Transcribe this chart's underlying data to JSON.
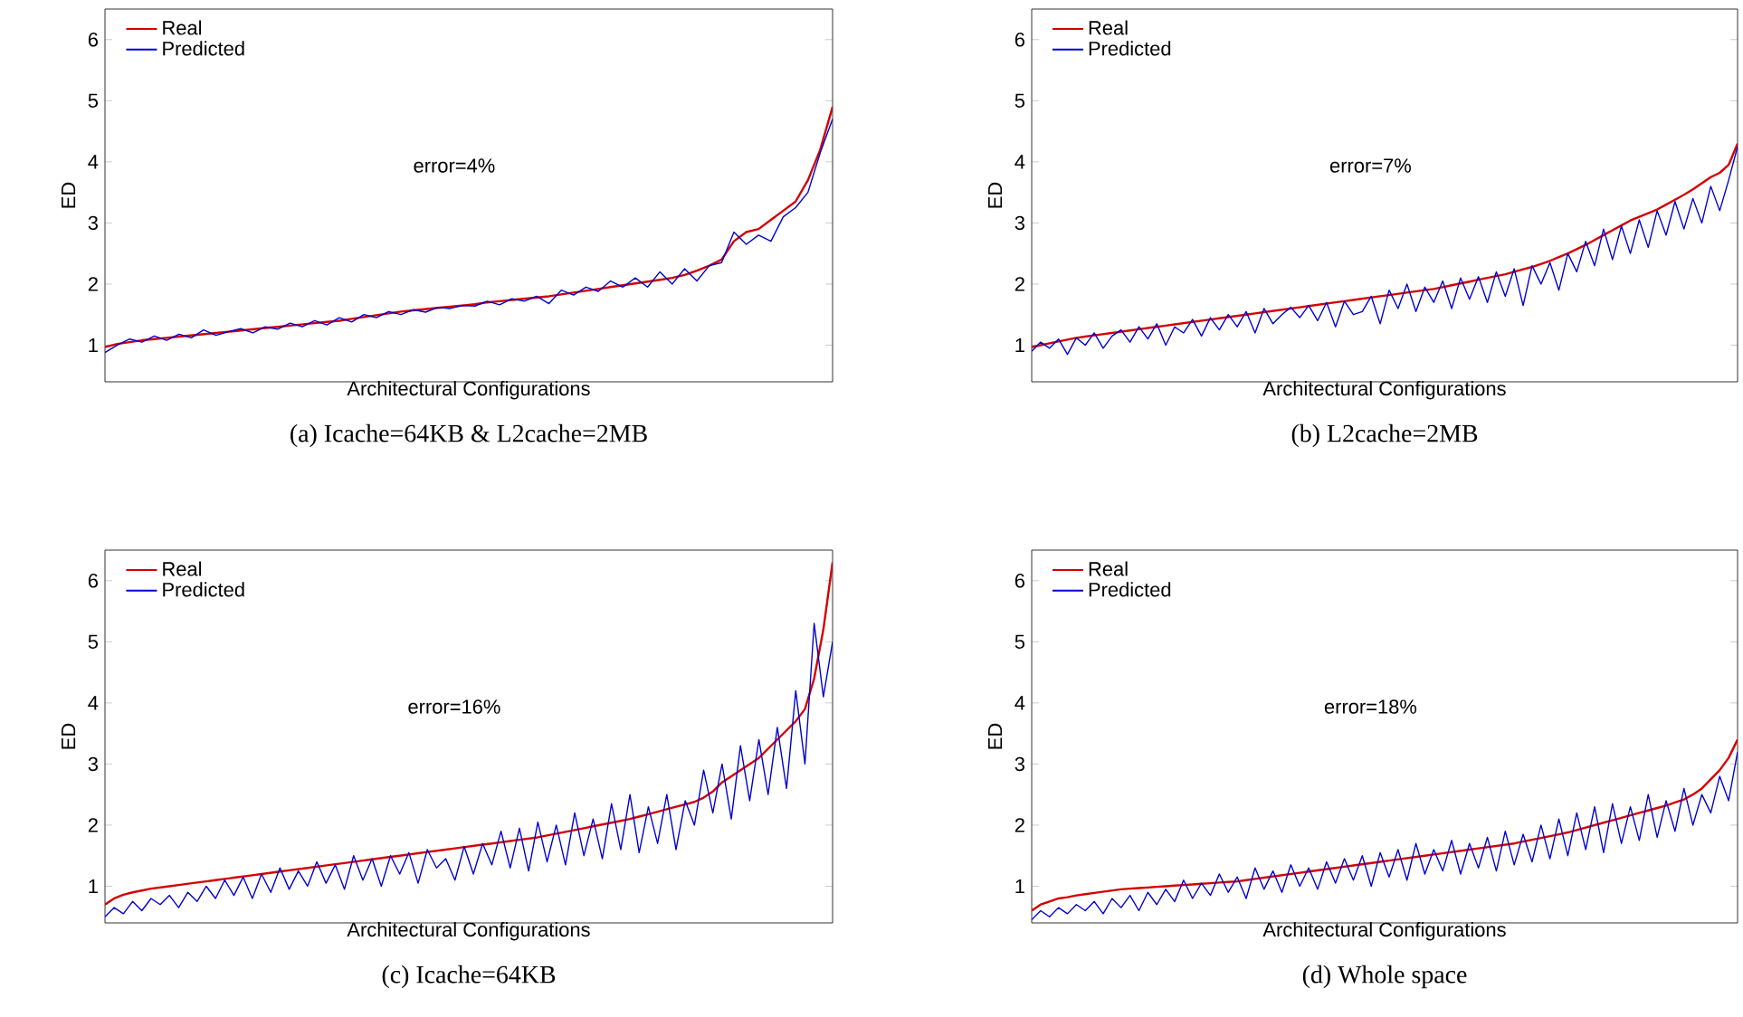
{
  "chart_data": [
    {
      "type": "line",
      "title": "(a)  Icache=64KB  &  L2cache=2MB",
      "xlabel": "Architectural Configurations",
      "ylabel": "ED",
      "annotations": [
        "error=4%"
      ],
      "ylim": [
        0.4,
        6.5
      ],
      "yticks": [
        1,
        2,
        3,
        4,
        5,
        6
      ],
      "legend": "top left",
      "grid": false,
      "tick_labels": "y",
      "categories": [
        null,
        null,
        null,
        null,
        null,
        null,
        null,
        null,
        null,
        null,
        null,
        null,
        null,
        null,
        null,
        null,
        null,
        null,
        null,
        null,
        null,
        null,
        null,
        null,
        null,
        null,
        null,
        null,
        null,
        null,
        null,
        null,
        null,
        null,
        null,
        null,
        null,
        null,
        null,
        null,
        null,
        null,
        null,
        null,
        null,
        null,
        null,
        null,
        null,
        null,
        null,
        null,
        null,
        null,
        null,
        null,
        null,
        null,
        null,
        null
      ],
      "series": [
        {
          "name": "Real",
          "color": "#d40000",
          "values": [
            0.97,
            1.02,
            1.05,
            1.08,
            1.1,
            1.12,
            1.14,
            1.16,
            1.18,
            1.2,
            1.22,
            1.24,
            1.26,
            1.28,
            1.3,
            1.32,
            1.34,
            1.36,
            1.38,
            1.4,
            1.43,
            1.46,
            1.49,
            1.52,
            1.55,
            1.57,
            1.59,
            1.61,
            1.63,
            1.65,
            1.67,
            1.7,
            1.72,
            1.74,
            1.76,
            1.78,
            1.8,
            1.83,
            1.86,
            1.89,
            1.92,
            1.95,
            1.98,
            2.01,
            2.04,
            2.07,
            2.1,
            2.15,
            2.22,
            2.3,
            2.4,
            2.7,
            2.85,
            2.9,
            3.05,
            3.2,
            3.35,
            3.7,
            4.2,
            4.9
          ]
        },
        {
          "name": "Predicted",
          "color": "#0000d0",
          "values": [
            0.88,
            1.0,
            1.1,
            1.05,
            1.15,
            1.08,
            1.18,
            1.12,
            1.25,
            1.16,
            1.22,
            1.27,
            1.2,
            1.3,
            1.26,
            1.36,
            1.3,
            1.4,
            1.33,
            1.45,
            1.38,
            1.5,
            1.45,
            1.55,
            1.5,
            1.58,
            1.54,
            1.62,
            1.6,
            1.65,
            1.64,
            1.72,
            1.66,
            1.76,
            1.72,
            1.8,
            1.68,
            1.9,
            1.82,
            1.95,
            1.88,
            2.05,
            1.95,
            2.1,
            1.95,
            2.2,
            2.0,
            2.25,
            2.05,
            2.3,
            2.35,
            2.85,
            2.65,
            2.8,
            2.7,
            3.1,
            3.25,
            3.5,
            4.15,
            4.7
          ]
        }
      ]
    },
    {
      "type": "line",
      "title": "(b)  L2cache=2MB",
      "xlabel": "Architectural Configurations",
      "ylabel": "ED",
      "annotations": [
        "error=7%"
      ],
      "ylim": [
        0.4,
        6.5
      ],
      "yticks": [
        1,
        2,
        3,
        4,
        5,
        6
      ],
      "legend": "top left",
      "grid": false,
      "tick_labels": "y",
      "categories": [
        null,
        null,
        null,
        null,
        null,
        null,
        null,
        null,
        null,
        null,
        null,
        null,
        null,
        null,
        null,
        null,
        null,
        null,
        null,
        null,
        null,
        null,
        null,
        null,
        null,
        null,
        null,
        null,
        null,
        null,
        null,
        null,
        null,
        null,
        null,
        null,
        null,
        null,
        null,
        null,
        null,
        null,
        null,
        null,
        null,
        null,
        null,
        null,
        null,
        null,
        null,
        null,
        null,
        null,
        null,
        null,
        null,
        null,
        null,
        null,
        null,
        null,
        null,
        null,
        null,
        null,
        null,
        null,
        null,
        null,
        null,
        null,
        null,
        null,
        null,
        null,
        null,
        null,
        null,
        null
      ],
      "series": [
        {
          "name": "Real",
          "color": "#d40000",
          "values": [
            0.97,
            1.0,
            1.03,
            1.06,
            1.09,
            1.12,
            1.14,
            1.16,
            1.18,
            1.2,
            1.22,
            1.24,
            1.26,
            1.28,
            1.3,
            1.32,
            1.34,
            1.36,
            1.38,
            1.4,
            1.42,
            1.44,
            1.46,
            1.48,
            1.5,
            1.52,
            1.54,
            1.56,
            1.58,
            1.6,
            1.62,
            1.64,
            1.66,
            1.68,
            1.7,
            1.72,
            1.74,
            1.76,
            1.78,
            1.8,
            1.82,
            1.84,
            1.86,
            1.88,
            1.9,
            1.92,
            1.95,
            1.98,
            2.01,
            2.04,
            2.07,
            2.1,
            2.13,
            2.16,
            2.2,
            2.24,
            2.28,
            2.33,
            2.38,
            2.44,
            2.5,
            2.57,
            2.64,
            2.72,
            2.8,
            2.88,
            2.96,
            3.04,
            3.1,
            3.16,
            3.22,
            3.3,
            3.38,
            3.46,
            3.55,
            3.65,
            3.75,
            3.82,
            3.95,
            4.3
          ]
        },
        {
          "name": "Predicted",
          "color": "#0000d0",
          "values": [
            0.9,
            1.05,
            0.95,
            1.1,
            0.85,
            1.12,
            1.0,
            1.2,
            0.95,
            1.15,
            1.25,
            1.05,
            1.3,
            1.1,
            1.35,
            1.0,
            1.3,
            1.2,
            1.42,
            1.15,
            1.45,
            1.25,
            1.5,
            1.3,
            1.55,
            1.2,
            1.6,
            1.35,
            1.5,
            1.62,
            1.45,
            1.65,
            1.4,
            1.7,
            1.3,
            1.72,
            1.5,
            1.55,
            1.8,
            1.35,
            1.9,
            1.6,
            2.0,
            1.55,
            1.95,
            1.7,
            2.05,
            1.6,
            2.1,
            1.75,
            2.12,
            1.7,
            2.2,
            1.8,
            2.25,
            1.65,
            2.3,
            2.0,
            2.35,
            1.9,
            2.5,
            2.2,
            2.7,
            2.3,
            2.9,
            2.4,
            2.95,
            2.5,
            3.05,
            2.6,
            3.2,
            2.8,
            3.35,
            2.9,
            3.4,
            3.0,
            3.6,
            3.2,
            3.7,
            4.25
          ]
        }
      ]
    },
    {
      "type": "line",
      "title": "(c)  Icache=64KB",
      "xlabel": "Architectural Configurations",
      "ylabel": "ED",
      "annotations": [
        "error=16%"
      ],
      "ylim": [
        0.4,
        6.5
      ],
      "yticks": [
        1,
        2,
        3,
        4,
        5,
        6
      ],
      "legend": "top left",
      "grid": false,
      "tick_labels": "y",
      "categories": [
        null,
        null,
        null,
        null,
        null,
        null,
        null,
        null,
        null,
        null,
        null,
        null,
        null,
        null,
        null,
        null,
        null,
        null,
        null,
        null,
        null,
        null,
        null,
        null,
        null,
        null,
        null,
        null,
        null,
        null,
        null,
        null,
        null,
        null,
        null,
        null,
        null,
        null,
        null,
        null,
        null,
        null,
        null,
        null,
        null,
        null,
        null,
        null,
        null,
        null,
        null,
        null,
        null,
        null,
        null,
        null,
        null,
        null,
        null,
        null,
        null,
        null,
        null,
        null,
        null,
        null,
        null,
        null,
        null,
        null,
        null,
        null,
        null,
        null,
        null,
        null,
        null,
        null,
        null,
        null
      ],
      "series": [
        {
          "name": "Real",
          "color": "#d40000",
          "values": [
            0.7,
            0.8,
            0.86,
            0.9,
            0.93,
            0.96,
            0.98,
            1.0,
            1.02,
            1.04,
            1.06,
            1.08,
            1.1,
            1.12,
            1.14,
            1.16,
            1.18,
            1.2,
            1.22,
            1.24,
            1.26,
            1.28,
            1.3,
            1.32,
            1.34,
            1.36,
            1.38,
            1.4,
            1.42,
            1.44,
            1.46,
            1.48,
            1.5,
            1.52,
            1.54,
            1.56,
            1.58,
            1.6,
            1.62,
            1.64,
            1.66,
            1.68,
            1.7,
            1.72,
            1.74,
            1.76,
            1.78,
            1.8,
            1.83,
            1.86,
            1.89,
            1.92,
            1.95,
            1.98,
            2.01,
            2.04,
            2.07,
            2.1,
            2.14,
            2.18,
            2.22,
            2.26,
            2.3,
            2.34,
            2.38,
            2.45,
            2.55,
            2.7,
            2.8,
            2.9,
            3.0,
            3.1,
            3.25,
            3.4,
            3.55,
            3.7,
            3.9,
            4.4,
            5.2,
            6.3
          ]
        },
        {
          "name": "Predicted",
          "color": "#0000d0",
          "values": [
            0.5,
            0.65,
            0.55,
            0.75,
            0.6,
            0.8,
            0.7,
            0.85,
            0.65,
            0.9,
            0.75,
            1.0,
            0.8,
            1.1,
            0.85,
            1.15,
            0.8,
            1.2,
            0.9,
            1.3,
            0.95,
            1.25,
            1.0,
            1.4,
            1.05,
            1.35,
            0.95,
            1.5,
            1.1,
            1.45,
            1.0,
            1.5,
            1.2,
            1.55,
            1.05,
            1.6,
            1.3,
            1.45,
            1.1,
            1.65,
            1.2,
            1.7,
            1.35,
            1.9,
            1.3,
            1.95,
            1.25,
            2.05,
            1.4,
            2.0,
            1.35,
            2.2,
            1.5,
            2.1,
            1.45,
            2.35,
            1.6,
            2.5,
            1.55,
            2.3,
            1.7,
            2.5,
            1.6,
            2.4,
            2.0,
            2.9,
            2.2,
            3.0,
            2.1,
            3.3,
            2.4,
            3.4,
            2.5,
            3.6,
            2.6,
            4.2,
            3.0,
            5.3,
            4.1,
            5.0
          ]
        }
      ]
    },
    {
      "type": "line",
      "title": "(d)  Whole space",
      "xlabel": "Architectural Configurations",
      "ylabel": "ED",
      "annotations": [
        "error=18%"
      ],
      "ylim": [
        0.4,
        6.5
      ],
      "yticks": [
        1,
        2,
        3,
        4,
        5,
        6
      ],
      "legend": "top left",
      "grid": false,
      "tick_labels": "y",
      "categories": [
        null,
        null,
        null,
        null,
        null,
        null,
        null,
        null,
        null,
        null,
        null,
        null,
        null,
        null,
        null,
        null,
        null,
        null,
        null,
        null,
        null,
        null,
        null,
        null,
        null,
        null,
        null,
        null,
        null,
        null,
        null,
        null,
        null,
        null,
        null,
        null,
        null,
        null,
        null,
        null,
        null,
        null,
        null,
        null,
        null,
        null,
        null,
        null,
        null,
        null,
        null,
        null,
        null,
        null,
        null,
        null,
        null,
        null,
        null,
        null,
        null,
        null,
        null,
        null,
        null,
        null,
        null,
        null,
        null,
        null,
        null,
        null,
        null,
        null,
        null,
        null,
        null,
        null,
        null,
        null
      ],
      "series": [
        {
          "name": "Real",
          "color": "#d40000",
          "values": [
            0.6,
            0.7,
            0.75,
            0.8,
            0.82,
            0.85,
            0.87,
            0.89,
            0.91,
            0.93,
            0.95,
            0.96,
            0.97,
            0.98,
            0.99,
            1.0,
            1.01,
            1.02,
            1.03,
            1.04,
            1.05,
            1.06,
            1.07,
            1.08,
            1.1,
            1.12,
            1.14,
            1.16,
            1.18,
            1.2,
            1.22,
            1.24,
            1.26,
            1.28,
            1.3,
            1.32,
            1.34,
            1.36,
            1.38,
            1.4,
            1.42,
            1.44,
            1.46,
            1.48,
            1.5,
            1.52,
            1.54,
            1.56,
            1.58,
            1.6,
            1.62,
            1.64,
            1.66,
            1.68,
            1.7,
            1.73,
            1.76,
            1.79,
            1.82,
            1.85,
            1.88,
            1.92,
            1.96,
            2.0,
            2.04,
            2.08,
            2.12,
            2.16,
            2.2,
            2.24,
            2.28,
            2.32,
            2.37,
            2.42,
            2.5,
            2.6,
            2.75,
            2.9,
            3.1,
            3.4
          ]
        },
        {
          "name": "Predicted",
          "color": "#0000d0",
          "values": [
            0.45,
            0.6,
            0.5,
            0.65,
            0.55,
            0.7,
            0.6,
            0.75,
            0.55,
            0.8,
            0.65,
            0.85,
            0.6,
            0.9,
            0.7,
            0.95,
            0.75,
            1.1,
            0.8,
            1.05,
            0.85,
            1.2,
            0.9,
            1.15,
            0.8,
            1.3,
            0.95,
            1.25,
            0.9,
            1.35,
            1.0,
            1.3,
            0.95,
            1.4,
            1.05,
            1.45,
            1.1,
            1.5,
            1.0,
            1.55,
            1.15,
            1.6,
            1.1,
            1.7,
            1.2,
            1.6,
            1.25,
            1.75,
            1.2,
            1.7,
            1.3,
            1.8,
            1.25,
            1.9,
            1.35,
            1.85,
            1.4,
            2.0,
            1.45,
            2.1,
            1.5,
            2.2,
            1.6,
            2.3,
            1.55,
            2.35,
            1.7,
            2.3,
            1.75,
            2.5,
            1.8,
            2.4,
            1.9,
            2.6,
            2.0,
            2.5,
            2.2,
            2.8,
            2.4,
            3.2
          ]
        }
      ]
    }
  ]
}
